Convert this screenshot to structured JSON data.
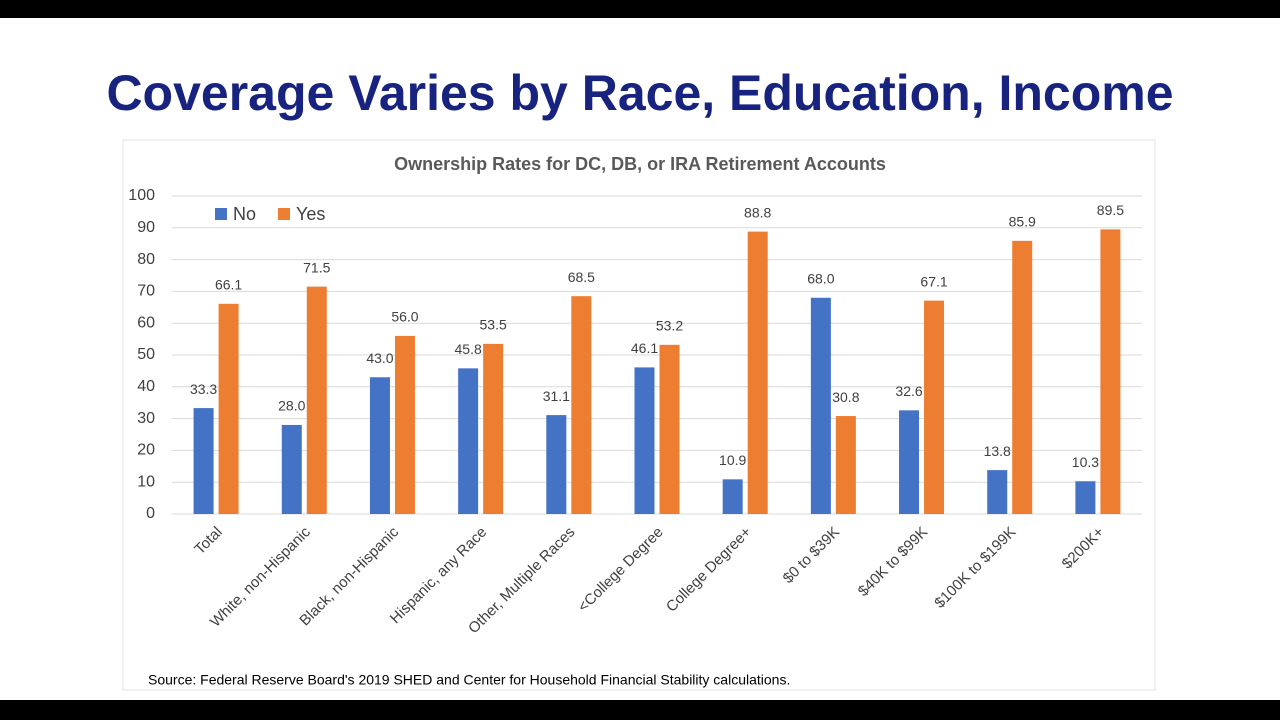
{
  "slide": {
    "title": "Coverage Varies by Race, Education, Income"
  },
  "chart_data": {
    "type": "bar",
    "title": "Ownership Rates for DC, DB, or IRA Retirement Accounts",
    "source": "Source: Federal Reserve Board's 2019 SHED and Center for Household Financial Stability calculations.",
    "categories": [
      "Total",
      "White, non-Hispanic",
      "Black, non-Hispanic",
      "Hispanic, any Race",
      "Other, Multiple Races",
      "<College Degree",
      "College Degree+",
      "$0 to $39K",
      "$40K to $99K",
      "$100K to $199K",
      "$200K+"
    ],
    "series": [
      {
        "name": "No",
        "color": "#4472c4",
        "values": [
          33.3,
          28.0,
          43.0,
          45.8,
          31.1,
          46.1,
          10.9,
          68.0,
          32.6,
          13.8,
          10.3
        ],
        "value_labels": [
          "33.3",
          "28.0",
          "43.0",
          "45.8",
          "31.1",
          "46.1",
          "10.9",
          "68.0",
          "32.6",
          "13.8",
          "10.3"
        ]
      },
      {
        "name": "Yes",
        "color": "#ed7d31",
        "values": [
          66.1,
          71.5,
          56.0,
          53.5,
          68.5,
          53.2,
          88.8,
          30.8,
          67.1,
          85.9,
          89.5
        ],
        "value_labels": [
          "66.1",
          "71.5",
          "56.0",
          "53.5",
          "68.5",
          "53.2",
          "88.8",
          "30.8",
          "67.1",
          "85.9",
          "89.5"
        ]
      }
    ],
    "ylim": [
      0,
      100
    ],
    "yticks": [
      0,
      10,
      20,
      30,
      40,
      50,
      60,
      70,
      80,
      90,
      100
    ],
    "grid": true,
    "legend": "top-left"
  }
}
